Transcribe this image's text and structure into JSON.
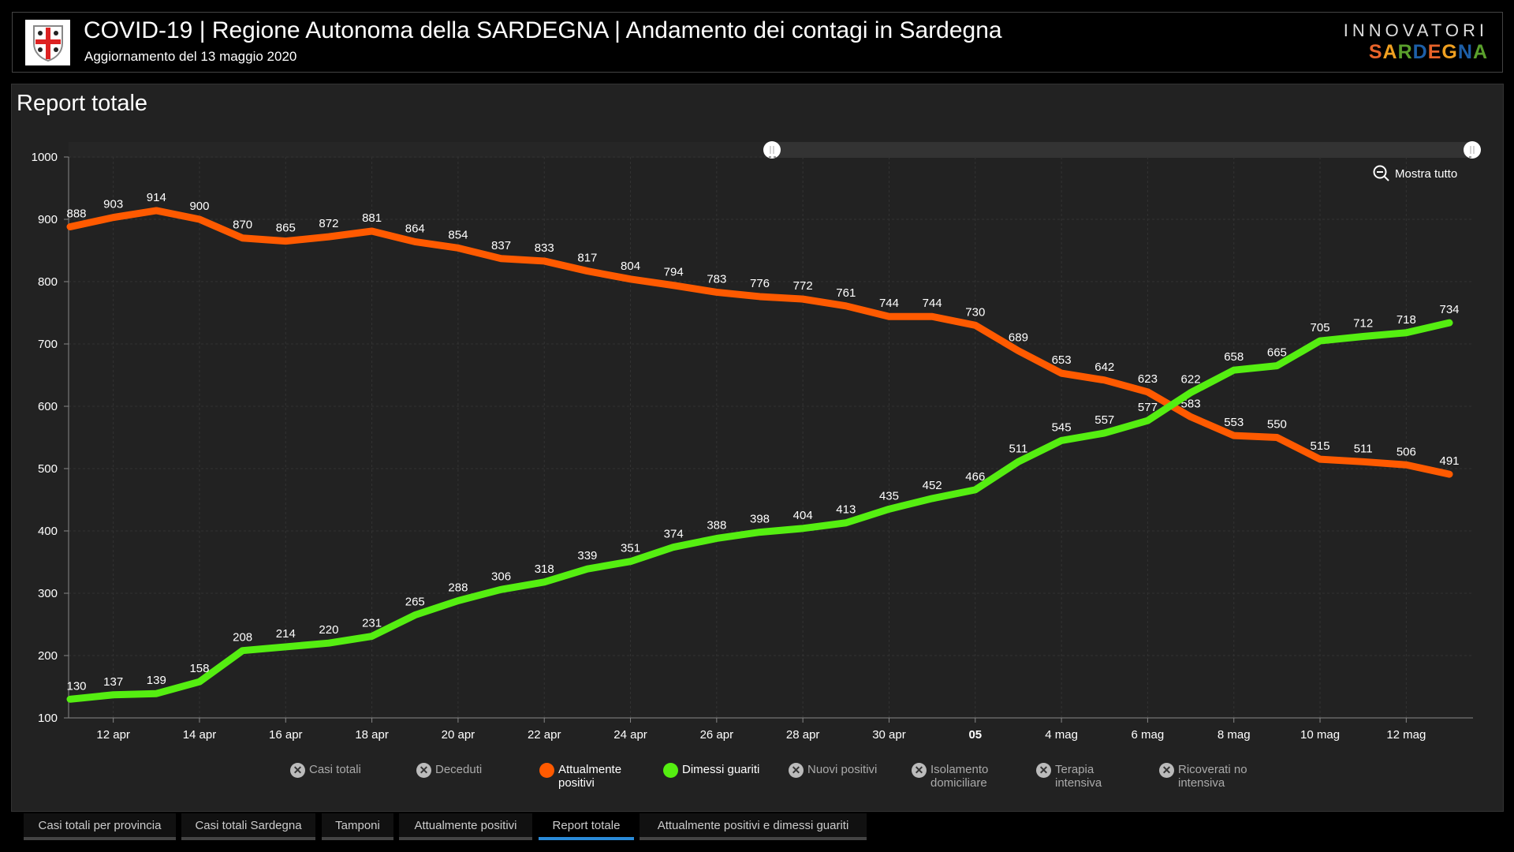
{
  "header": {
    "title": "COVID-19 | Regione Autonoma della SARDEGNA | Andamento dei contagi in Sardegna",
    "subtitle": "Aggiornamento del 13 maggio 2020",
    "brand_top": "INNOVATORI",
    "brand_bottom": "SARDEGNA"
  },
  "panel": {
    "title": "Report totale",
    "zoom_reset": "Mostra tutto"
  },
  "legend": [
    {
      "label": "Casi totali",
      "active": false,
      "color": "#bbbbbb"
    },
    {
      "label": "Deceduti",
      "active": false,
      "color": "#bbbbbb"
    },
    {
      "label": "Attualmente positivi",
      "active": true,
      "color": "#ff5a00"
    },
    {
      "label": "Dimessi guariti",
      "active": true,
      "color": "#55ee11"
    },
    {
      "label": "Nuovi positivi",
      "active": false,
      "color": "#bbbbbb"
    },
    {
      "label": "Isolamento domiciliare",
      "active": false,
      "color": "#bbbbbb"
    },
    {
      "label": "Terapia intensiva",
      "active": false,
      "color": "#bbbbbb"
    },
    {
      "label": "Ricoverati no intensiva",
      "active": false,
      "color": "#bbbbbb"
    }
  ],
  "tabs": [
    {
      "label": "Casi totali per provincia",
      "active": false
    },
    {
      "label": "Casi totali Sardegna",
      "active": false
    },
    {
      "label": "Tamponi",
      "active": false
    },
    {
      "label": "Attualmente positivi",
      "active": false
    },
    {
      "label": "Report totale",
      "active": true
    },
    {
      "label": "Attualmente positivi e dimessi guariti",
      "active": false
    }
  ],
  "chart_data": {
    "type": "line",
    "title": "Report totale",
    "x_start": "11 apr",
    "x_end": "13 mag",
    "points": 33,
    "xticks": [
      {
        "i": 1,
        "label": "12 apr"
      },
      {
        "i": 3,
        "label": "14 apr"
      },
      {
        "i": 5,
        "label": "16 apr"
      },
      {
        "i": 7,
        "label": "18 apr"
      },
      {
        "i": 9,
        "label": "20 apr"
      },
      {
        "i": 11,
        "label": "22 apr"
      },
      {
        "i": 13,
        "label": "24 apr"
      },
      {
        "i": 15,
        "label": "26 apr"
      },
      {
        "i": 17,
        "label": "28 apr"
      },
      {
        "i": 19,
        "label": "30 apr"
      },
      {
        "i": 21,
        "label": "05",
        "bold": true
      },
      {
        "i": 23,
        "label": "4 mag"
      },
      {
        "i": 25,
        "label": "6 mag"
      },
      {
        "i": 27,
        "label": "8 mag"
      },
      {
        "i": 29,
        "label": "10 mag"
      },
      {
        "i": 31,
        "label": "12 mag"
      }
    ],
    "ylim": [
      100,
      1000
    ],
    "yticks": [
      100,
      200,
      300,
      400,
      500,
      600,
      700,
      800,
      900,
      1000
    ],
    "grid": true,
    "legend_position": "bottom",
    "series": [
      {
        "name": "Attualmente positivi",
        "color": "#ff5a00",
        "values": [
          888,
          903,
          914,
          900,
          870,
          865,
          872,
          881,
          864,
          854,
          837,
          833,
          817,
          804,
          794,
          783,
          776,
          772,
          761,
          744,
          744,
          730,
          689,
          653,
          642,
          623,
          583,
          553,
          550,
          515,
          511,
          506,
          491
        ]
      },
      {
        "name": "Dimessi guariti",
        "color": "#55ee11",
        "values": [
          130,
          137,
          139,
          158,
          208,
          214,
          220,
          231,
          265,
          288,
          306,
          318,
          339,
          351,
          374,
          388,
          398,
          404,
          413,
          435,
          452,
          466,
          511,
          545,
          557,
          577,
          622,
          658,
          665,
          705,
          712,
          718,
          734
        ]
      }
    ]
  }
}
